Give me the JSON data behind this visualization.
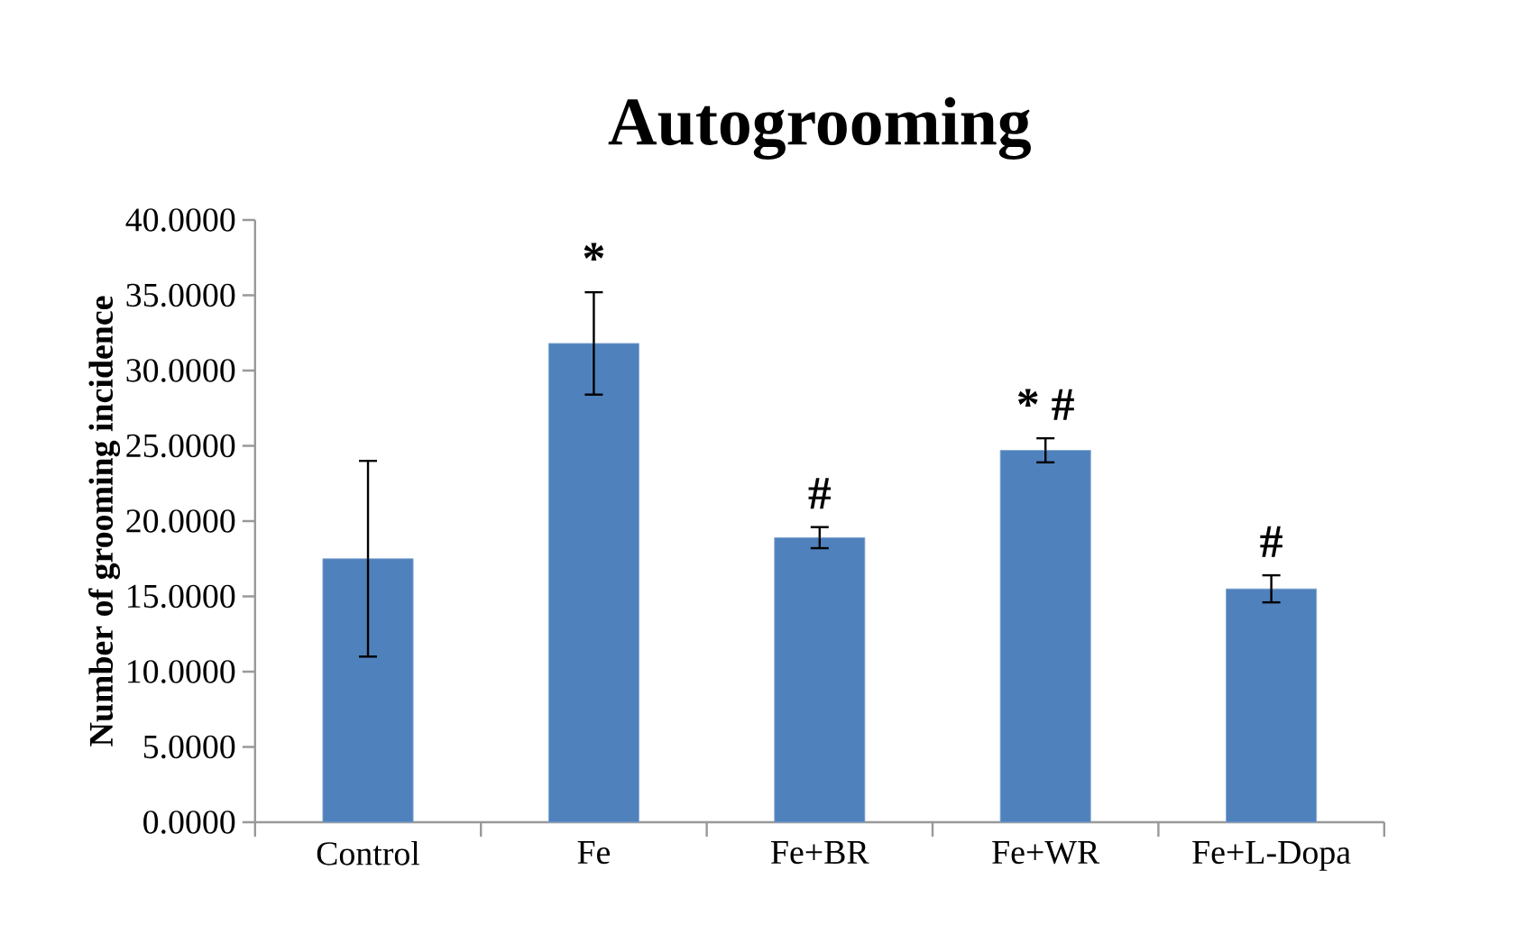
{
  "chart_data": {
    "type": "bar",
    "title": "Autogrooming",
    "ylabel": "Number of grooming incidence",
    "categories": [
      "Control",
      "Fe",
      "Fe+BR",
      "Fe+WR",
      "Fe+L-Dopa"
    ],
    "values": [
      17.5,
      31.8,
      18.9,
      24.7,
      15.5
    ],
    "errors": [
      6.5,
      3.4,
      0.7,
      0.8,
      0.9
    ],
    "color": "#4f81bd",
    "ylim": [
      0,
      40
    ],
    "yticks": [
      {
        "value": 0,
        "label": "0.0000"
      },
      {
        "value": 5,
        "label": "5.0000"
      },
      {
        "value": 10,
        "label": "10.0000"
      },
      {
        "value": 15,
        "label": "15.0000"
      },
      {
        "value": 20,
        "label": "20.0000"
      },
      {
        "value": 25,
        "label": "25.0000"
      },
      {
        "value": 30,
        "label": "30.0000"
      },
      {
        "value": 35,
        "label": "35.0000"
      },
      {
        "value": 40,
        "label": "40.0000"
      }
    ],
    "annotations": [
      {
        "text": "*",
        "x": "Fe",
        "y": 31.8
      },
      {
        "text": "#",
        "x": "Fe+BR",
        "y": 18.9
      },
      {
        "text": "* #",
        "x": "Fe+WR",
        "y": 24.7
      },
      {
        "text": "#",
        "x": "Fe+L-Dopa",
        "y": 15.5
      }
    ]
  }
}
